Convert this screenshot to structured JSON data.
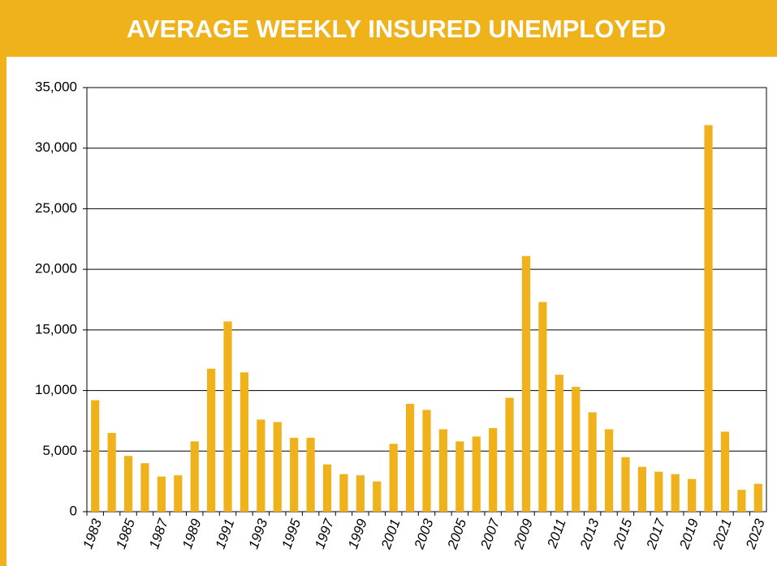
{
  "chart_data": {
    "type": "bar",
    "title": "AVERAGE WEEKLY INSURED UNEMPLOYED",
    "categories": [
      "1983",
      null,
      "1985",
      null,
      "1987",
      null,
      "1989",
      null,
      "1991",
      null,
      "1993",
      null,
      "1995",
      null,
      "1997",
      null,
      "1999",
      null,
      "2001",
      null,
      "2003",
      null,
      "2005",
      null,
      "2007",
      null,
      "2009",
      null,
      "2011",
      null,
      "2013",
      null,
      "2015",
      null,
      "2017",
      null,
      "2019",
      null,
      "2021",
      null,
      "2023"
    ],
    "values": [
      9200,
      6500,
      4600,
      4000,
      2900,
      3000,
      5800,
      11800,
      15700,
      11500,
      7600,
      7400,
      6100,
      6100,
      3900,
      3100,
      3000,
      2500,
      5600,
      8900,
      8400,
      6800,
      5800,
      6200,
      6900,
      9400,
      21100,
      17300,
      11300,
      10300,
      8200,
      6800,
      4500,
      3700,
      3300,
      3100,
      2700,
      31900,
      6600,
      1800,
      2300
    ],
    "color": "#efb21a",
    "ylim": [
      0,
      35000
    ],
    "yticks": [
      0,
      {
        "value": 5000,
        "label": "5,000"
      },
      {
        "value": 10000,
        "label": "10,000"
      },
      {
        "value": 15000,
        "label": "15,000"
      },
      {
        "value": 20000,
        "label": "20,000"
      },
      {
        "value": 25000,
        "label": "25,000"
      },
      {
        "value": 30000,
        "label": "30,000"
      },
      {
        "value": 35000,
        "label": "35,000"
      }
    ],
    "grid": true
  }
}
